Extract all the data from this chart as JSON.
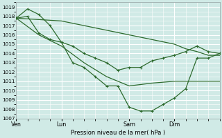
{
  "bg_color": "#d0eae6",
  "grid_color": "#ffffff",
  "line_color": "#2d6a2d",
  "xlabel": "Pression niveau de la mer( hPa )",
  "ylim": [
    1007,
    1019.5
  ],
  "yticks": [
    1007,
    1008,
    1009,
    1010,
    1011,
    1012,
    1013,
    1014,
    1015,
    1016,
    1017,
    1018,
    1019
  ],
  "xtick_labels": [
    "Ven",
    "Lun",
    "Sam",
    "Dim"
  ],
  "xtick_positions": [
    0,
    48,
    120,
    168
  ],
  "vline_positions": [
    0,
    48,
    120,
    168
  ],
  "xlim": [
    0,
    216
  ],
  "lines": [
    {
      "x": [
        0,
        48,
        96,
        120,
        144,
        168,
        180,
        192,
        204,
        216
      ],
      "y": [
        1017.8,
        1017.5,
        1016.5,
        1016.0,
        1015.5,
        1015.0,
        1014.5,
        1014.2,
        1013.8,
        1013.8
      ],
      "markers": false,
      "lw": 0.9
    },
    {
      "x": [
        0,
        12,
        24,
        36,
        48,
        60,
        72,
        84,
        96,
        108,
        120,
        132,
        144,
        156,
        168,
        180,
        192,
        204,
        216
      ],
      "y": [
        1017.8,
        1018.8,
        1018.2,
        1017.0,
        1015.2,
        1014.8,
        1014.0,
        1013.5,
        1013.0,
        1012.2,
        1012.5,
        1012.5,
        1013.2,
        1013.5,
        1013.8,
        1014.2,
        1014.8,
        1014.2,
        1014.0
      ],
      "markers": true,
      "lw": 0.9
    },
    {
      "x": [
        0,
        12,
        24,
        36,
        48,
        60,
        72,
        84,
        96,
        108,
        120,
        132,
        144,
        156,
        168,
        180,
        192,
        204,
        216
      ],
      "y": [
        1017.8,
        1018.0,
        1016.2,
        1015.5,
        1015.2,
        1013.0,
        1012.5,
        1011.5,
        1010.5,
        1010.5,
        1008.2,
        1007.8,
        1007.8,
        1008.5,
        1009.2,
        1010.2,
        1013.5,
        1013.5,
        1014.0
      ],
      "markers": true,
      "lw": 0.9
    },
    {
      "x": [
        0,
        24,
        48,
        72,
        96,
        120,
        144,
        168,
        192,
        216
      ],
      "y": [
        1017.8,
        1016.0,
        1014.8,
        1013.0,
        1011.5,
        1010.5,
        1010.8,
        1011.0,
        1011.0,
        1011.0
      ],
      "markers": false,
      "lw": 0.9
    }
  ]
}
